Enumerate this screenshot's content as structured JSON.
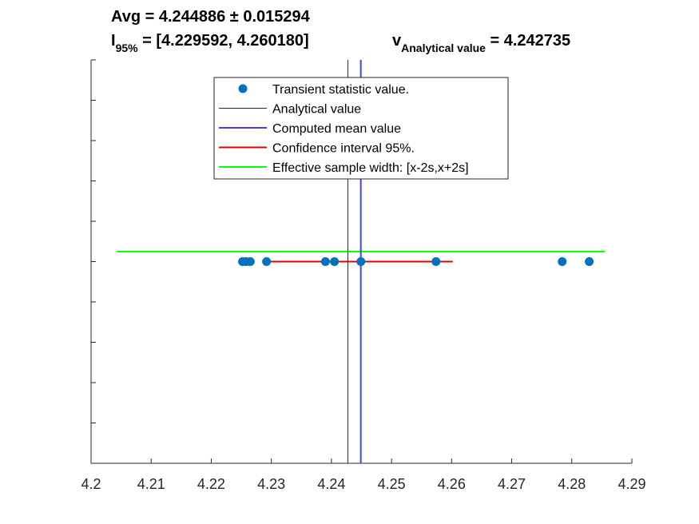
{
  "title": {
    "line1": "Avg = 4.244886 ± 0.015294",
    "ci_symbol": "I",
    "ci_subscript": "95%",
    "ci_value": " = [4.229592, 4.260180]",
    "av_symbol": "v",
    "av_subscript": "Analytical value",
    "av_value": " = 4.242735"
  },
  "chart_data": {
    "type": "scatter",
    "xlim": [
      4.2,
      4.29
    ],
    "ylim": [
      0,
      1
    ],
    "xticks": [
      "4.2",
      "4.21",
      "4.22",
      "4.23",
      "4.24",
      "4.25",
      "4.26",
      "4.27",
      "4.28",
      "4.29"
    ],
    "ytick_count": 11,
    "ytick_labels_shown": false,
    "grid": false,
    "legend_position": "top-center",
    "series": [
      {
        "name": "Transient statistic value.",
        "kind": "points",
        "color": "#0072BD",
        "y": 0.5,
        "x": [
          4.2252,
          4.2258,
          4.2265,
          4.2292,
          4.239,
          4.2405,
          4.2449,
          4.2574,
          4.2784,
          4.2829
        ]
      },
      {
        "name": "Analytical value",
        "kind": "vline",
        "color": "#262626",
        "x": 4.242735
      },
      {
        "name": "Computed mean value",
        "kind": "vline",
        "color": "#4040f0",
        "x": 4.244886
      },
      {
        "name": "Confidence interval 95%.",
        "kind": "hline",
        "color": "#e00000",
        "y": 0.5,
        "x": [
          4.229592,
          4.26018
        ]
      },
      {
        "name": "Effective sample width: [x-2s,x+2s]",
        "kind": "hline",
        "color": "#00ff00",
        "y": 0.525,
        "x": [
          4.204298,
          4.285474
        ]
      }
    ]
  }
}
